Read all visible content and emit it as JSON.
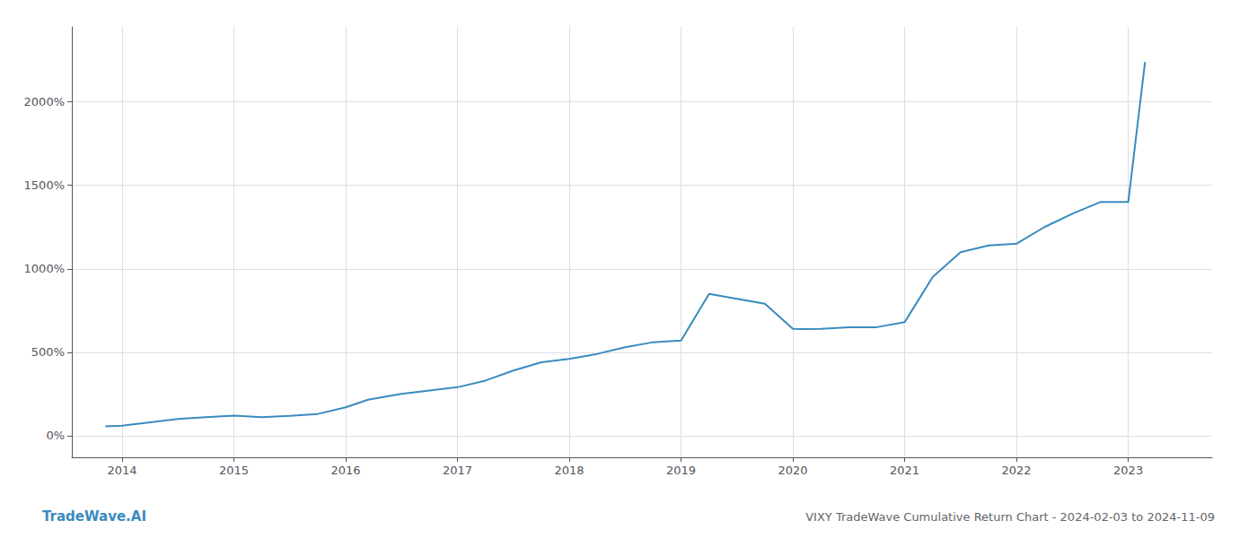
{
  "chart_data": {
    "type": "line",
    "title": "VIXY TradeWave Cumulative Return Chart - 2024-02-03 to 2024-11-09",
    "annotations": [
      "TradeWave.AI"
    ],
    "color": "#3a8bbf",
    "grid": true,
    "x": [
      2013.85,
      2014.0,
      2014.2,
      2014.5,
      2014.75,
      2015.0,
      2015.25,
      2015.5,
      2015.75,
      2016.0,
      2016.2,
      2016.5,
      2016.75,
      2017.0,
      2017.25,
      2017.5,
      2017.75,
      2018.0,
      2018.25,
      2018.5,
      2018.75,
      2019.0,
      2019.25,
      2019.5,
      2019.75,
      2020.0,
      2020.1,
      2020.25,
      2020.5,
      2020.75,
      2021.0,
      2021.25,
      2021.5,
      2021.75,
      2022.0,
      2022.25,
      2022.5,
      2022.75,
      2023.0,
      2023.15
    ],
    "values": [
      55,
      60,
      75,
      100,
      110,
      120,
      110,
      118,
      130,
      170,
      215,
      250,
      270,
      290,
      330,
      390,
      440,
      460,
      490,
      530,
      560,
      570,
      850,
      820,
      790,
      640,
      638,
      640,
      650,
      650,
      680,
      950,
      1100,
      1140,
      1150,
      1250,
      1330,
      1400,
      1400,
      2240
    ],
    "xlim": [
      2013.55,
      2023.75
    ],
    "xticks": [
      2014,
      2015,
      2016,
      2017,
      2018,
      2019,
      2020,
      2021,
      2022,
      2023
    ],
    "ylim": [
      -130,
      2450
    ],
    "yticks": [
      {
        "value": 0,
        "label": "0%"
      },
      {
        "value": 500,
        "label": "500%"
      },
      {
        "value": 1000,
        "label": "1000%"
      },
      {
        "value": 1500,
        "label": "1500%"
      },
      {
        "value": 2000,
        "label": "2000%"
      }
    ]
  }
}
